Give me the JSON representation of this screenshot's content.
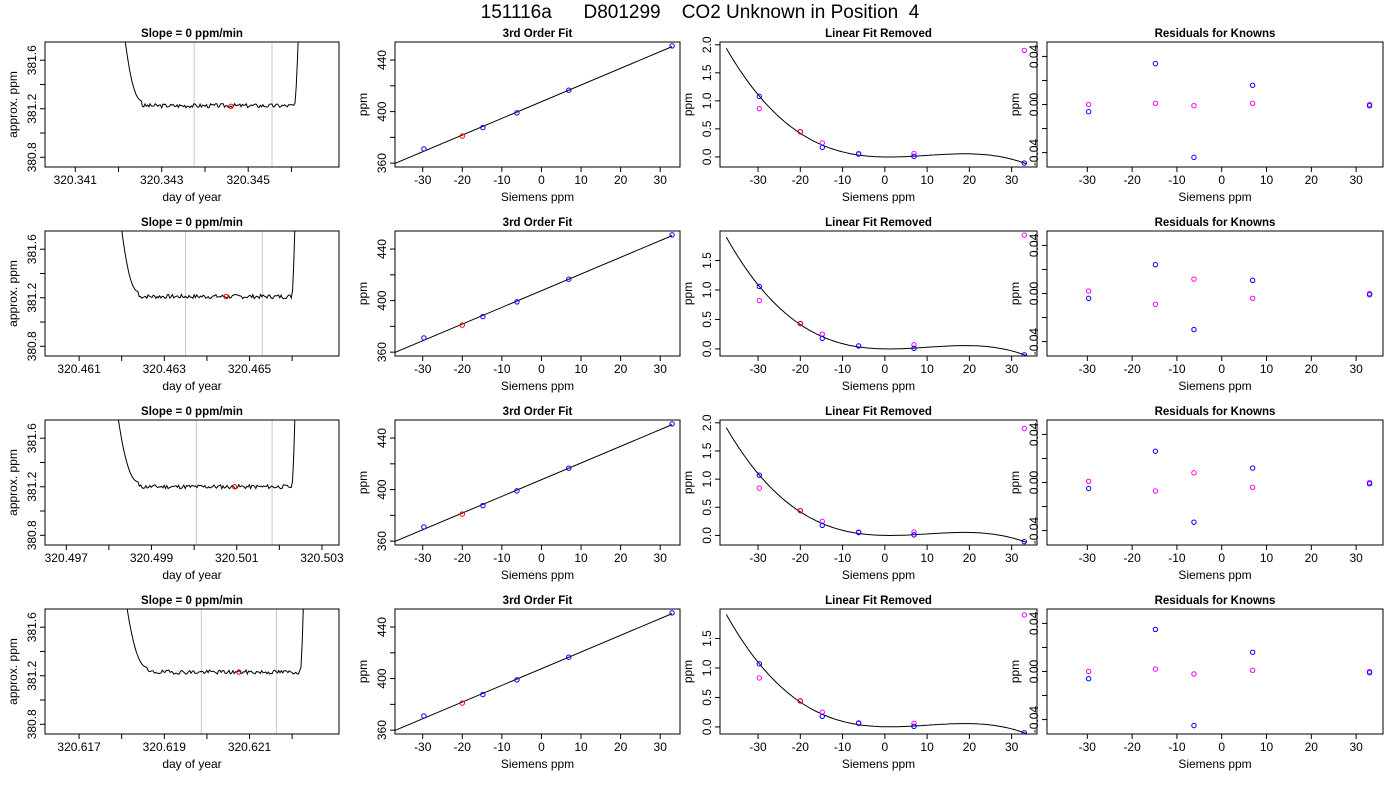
{
  "title": "151116a      D801299    CO2 Unknown in Position  4",
  "colors": {
    "known": "#0000ff",
    "unknown": "#ff00ff",
    "highlight": "#ff0000",
    "curve": "#000000",
    "window": "#c8c8c8"
  },
  "fit_points": {
    "x": [
      -29.7,
      -20.0,
      -14.8,
      -6.2,
      6.9,
      33.0
    ],
    "y": [
      371.0,
      381.0,
      387.6,
      399.0,
      416.6,
      451.0
    ],
    "highlight_index": 1
  },
  "fit_range": {
    "x": [
      -37,
      35
    ],
    "y": [
      357,
      454
    ]
  },
  "linear_removed_curve": {
    "coefficients": [
      0.0,
      -0.0054,
      0.00029,
      8e-06
    ]
  },
  "chart_data": [
    {
      "type": "line",
      "panel_title": "Slope =  0  ppm/min",
      "xlabel": "day of year",
      "ylabel": "approx. ppm",
      "xlim": [
        320.3403,
        320.3471
      ],
      "ylim": [
        380.72,
        381.75
      ],
      "xticks": [
        320.341,
        320.342,
        320.343,
        320.344,
        320.345,
        320.346
      ],
      "xtick_labels": [
        "320.341",
        "",
        "320.343",
        "",
        "320.345",
        ""
      ],
      "yticks": [
        380.8,
        381.0,
        381.2,
        381.4,
        381.6
      ],
      "ytick_labels": [
        "380.8",
        "",
        "381.2",
        "",
        "381.6"
      ],
      "trace": {
        "start": 320.34205,
        "flat_start": 320.34255,
        "flat_end": 320.34608,
        "end": 320.3462,
        "level": 381.225,
        "seed": 3
      },
      "window_lines": [
        320.34375,
        320.34555
      ],
      "marker": {
        "x": 320.3446,
        "y": 381.22
      }
    },
    {
      "type": "scatter",
      "panel_title": "3rd Order Fit",
      "xlabel": "Siemens ppm",
      "ylabel": "ppm",
      "xticks": [
        -30,
        -20,
        -10,
        0,
        10,
        20,
        30
      ],
      "yticks": [
        360,
        380,
        400,
        420,
        440
      ],
      "ytick_labels": [
        "360",
        "",
        "400",
        "",
        "440"
      ]
    },
    {
      "type": "scatter",
      "panel_title": "Linear Fit Removed",
      "xlabel": "Siemens ppm",
      "ylabel": "ppm",
      "xlim": [
        -39,
        36
      ],
      "ylim": [
        -0.18,
        2.05
      ],
      "xticks": [
        -30,
        -20,
        -10,
        0,
        10,
        20,
        30
      ],
      "yticks": [
        0,
        0.5,
        1,
        1.5,
        2
      ],
      "ytick_labels": [
        "0.0",
        "0.5",
        "1.0",
        "1.5",
        "2.0"
      ],
      "known": [
        [
          -29.7,
          1.08
        ],
        [
          -20.0,
          0.45
        ],
        [
          -14.8,
          0.17
        ],
        [
          -6.2,
          0.05
        ],
        [
          6.9,
          0.01
        ],
        [
          33.0,
          -0.11
        ]
      ],
      "unknown": [
        [
          -29.7,
          0.86
        ],
        [
          -14.8,
          0.25
        ],
        [
          -6.2,
          0.06
        ],
        [
          6.9,
          0.06
        ],
        [
          33.0,
          1.9
        ]
      ],
      "highlight": [
        [
          -20.0,
          0.45
        ]
      ]
    },
    {
      "type": "scatter",
      "panel_title": "Residuals for Knowns",
      "xlabel": "Siemens ppm",
      "ylabel": "ppm",
      "xlim": [
        -39,
        36
      ],
      "ylim": [
        -0.052,
        0.052
      ],
      "xticks": [
        -30,
        -20,
        -10,
        0,
        10,
        20,
        30
      ],
      "yticks": [
        -0.04,
        -0.02,
        0,
        0.02,
        0.04
      ],
      "ytick_labels": [
        "-0.04",
        "",
        "0.00",
        "",
        "0.04"
      ],
      "known": [
        [
          -29.7,
          -0.006
        ],
        [
          -14.8,
          0.034
        ],
        [
          -6.2,
          -0.044
        ],
        [
          6.9,
          0.016
        ],
        [
          33.0,
          -0.001
        ]
      ],
      "unknown": [
        [
          -29.7,
          0.0
        ],
        [
          -14.8,
          0.001
        ],
        [
          -6.2,
          -0.001
        ],
        [
          6.9,
          0.001
        ],
        [
          33.0,
          0.0
        ]
      ]
    },
    {
      "type": "line",
      "panel_title": "Slope =  0  ppm/min",
      "xlabel": "day of year",
      "ylabel": "approx. ppm",
      "xlim": [
        320.4602,
        320.4671
      ],
      "ylim": [
        380.72,
        381.75
      ],
      "xticks": [
        320.461,
        320.462,
        320.463,
        320.464,
        320.465,
        320.466
      ],
      "xtick_labels": [
        "320.461",
        "",
        "320.463",
        "",
        "320.465",
        ""
      ],
      "yticks": [
        380.8,
        381.0,
        381.2,
        381.4,
        381.6
      ],
      "ytick_labels": [
        "380.8",
        "",
        "381.2",
        "",
        "381.6"
      ],
      "trace": {
        "start": 320.4619,
        "flat_start": 320.4624,
        "flat_end": 320.466,
        "end": 320.4661,
        "level": 381.21,
        "seed": 7
      },
      "window_lines": [
        320.4635,
        320.4653
      ],
      "marker": {
        "x": 320.46445,
        "y": 381.21
      }
    },
    {
      "type": "scatter",
      "panel_title": "3rd Order Fit",
      "xlabel": "Siemens ppm",
      "ylabel": "ppm",
      "xticks": [
        -30,
        -20,
        -10,
        0,
        10,
        20,
        30
      ],
      "yticks": [
        360,
        380,
        400,
        420,
        440
      ],
      "ytick_labels": [
        "360",
        "",
        "400",
        "",
        "440"
      ]
    },
    {
      "type": "scatter",
      "panel_title": "Linear Fit Removed",
      "xlabel": "Siemens ppm",
      "ylabel": "ppm",
      "xlim": [
        -39,
        36
      ],
      "ylim": [
        -0.12,
        2.0
      ],
      "xticks": [
        -30,
        -20,
        -10,
        0,
        10,
        20,
        30
      ],
      "yticks": [
        0,
        0.5,
        1,
        1.5
      ],
      "ytick_labels": [
        "0.0",
        "0.5",
        "1.0",
        "1.5"
      ],
      "known": [
        [
          -29.7,
          1.06
        ],
        [
          -20.0,
          0.43
        ],
        [
          -14.8,
          0.18
        ],
        [
          -6.2,
          0.05
        ],
        [
          6.9,
          0.01
        ],
        [
          33.0,
          -0.1
        ]
      ],
      "unknown": [
        [
          -29.7,
          0.82
        ],
        [
          -14.8,
          0.25
        ],
        [
          -6.2,
          0.05
        ],
        [
          6.9,
          0.07
        ],
        [
          33.0,
          1.93
        ]
      ],
      "highlight": [
        [
          -20.0,
          0.43
        ]
      ]
    },
    {
      "type": "scatter",
      "panel_title": "Residuals for Knowns",
      "xlabel": "Siemens ppm",
      "ylabel": "ppm",
      "xlim": [
        -39,
        36
      ],
      "ylim": [
        -0.052,
        0.052
      ],
      "xticks": [
        -30,
        -20,
        -10,
        0,
        10,
        20,
        30
      ],
      "yticks": [
        -0.04,
        -0.02,
        0,
        0.02,
        0.04
      ],
      "ytick_labels": [
        "-0.04",
        "",
        "0.00",
        "",
        "0.04"
      ],
      "known": [
        [
          -29.7,
          -0.004
        ],
        [
          -14.8,
          0.024
        ],
        [
          -6.2,
          -0.03
        ],
        [
          6.9,
          0.011
        ],
        [
          33.0,
          -0.001
        ]
      ],
      "unknown": [
        [
          -29.7,
          0.002
        ],
        [
          -14.8,
          -0.009
        ],
        [
          -6.2,
          0.012
        ],
        [
          6.9,
          -0.004
        ],
        [
          33.0,
          0.0
        ]
      ]
    },
    {
      "type": "line",
      "panel_title": "Slope =  0  ppm/min",
      "xlabel": "day of year",
      "ylabel": "approx. ppm",
      "xlim": [
        320.4965,
        320.5034
      ],
      "ylim": [
        380.72,
        381.75
      ],
      "xticks": [
        320.497,
        320.498,
        320.499,
        320.5,
        320.501,
        320.502,
        320.503
      ],
      "xtick_labels": [
        "320.497",
        "",
        "320.499",
        "",
        "320.501",
        "",
        "320.503"
      ],
      "yticks": [
        380.8,
        381.0,
        381.2,
        381.4,
        381.6
      ],
      "ytick_labels": [
        "380.8",
        "",
        "381.2",
        "",
        "381.6"
      ],
      "trace": {
        "start": 320.4981,
        "flat_start": 320.4987,
        "flat_end": 320.5023,
        "end": 320.5024,
        "level": 381.2,
        "seed": 11
      },
      "window_lines": [
        320.50005,
        320.50183
      ],
      "marker": {
        "x": 320.50095,
        "y": 381.2
      }
    },
    {
      "type": "scatter",
      "panel_title": "3rd Order Fit",
      "xlabel": "Siemens ppm",
      "ylabel": "ppm",
      "xticks": [
        -30,
        -20,
        -10,
        0,
        10,
        20,
        30
      ],
      "yticks": [
        360,
        380,
        400,
        420,
        440
      ],
      "ytick_labels": [
        "360",
        "",
        "400",
        "",
        "440"
      ]
    },
    {
      "type": "scatter",
      "panel_title": "Linear Fit Removed",
      "xlabel": "Siemens ppm",
      "ylabel": "ppm",
      "xlim": [
        -39,
        36
      ],
      "ylim": [
        -0.17,
        2.05
      ],
      "xticks": [
        -30,
        -20,
        -10,
        0,
        10,
        20,
        30
      ],
      "yticks": [
        0,
        0.5,
        1,
        1.5,
        2
      ],
      "ytick_labels": [
        "0.0",
        "0.5",
        "1.0",
        "1.5",
        "2.0"
      ],
      "known": [
        [
          -29.7,
          1.07
        ],
        [
          -20.0,
          0.44
        ],
        [
          -14.8,
          0.18
        ],
        [
          -6.2,
          0.05
        ],
        [
          6.9,
          0.01
        ],
        [
          33.0,
          -0.11
        ]
      ],
      "unknown": [
        [
          -29.7,
          0.84
        ],
        [
          -14.8,
          0.25
        ],
        [
          -6.2,
          0.06
        ],
        [
          6.9,
          0.06
        ],
        [
          33.0,
          1.9
        ]
      ],
      "highlight": [
        [
          -20.0,
          0.44
        ]
      ]
    },
    {
      "type": "scatter",
      "panel_title": "Residuals for Knowns",
      "xlabel": "Siemens ppm",
      "ylabel": "ppm",
      "xlim": [
        -39,
        36
      ],
      "ylim": [
        -0.052,
        0.052
      ],
      "xticks": [
        -30,
        -20,
        -10,
        0,
        10,
        20,
        30
      ],
      "yticks": [
        -0.04,
        -0.02,
        0,
        0.02,
        0.04
      ],
      "ytick_labels": [
        "-0.04",
        "",
        "0.00",
        "",
        "0.04"
      ],
      "known": [
        [
          -29.7,
          -0.005
        ],
        [
          -14.8,
          0.026
        ],
        [
          -6.2,
          -0.033
        ],
        [
          6.9,
          0.012
        ],
        [
          33.0,
          -0.001
        ]
      ],
      "unknown": [
        [
          -29.7,
          0.001
        ],
        [
          -14.8,
          -0.007
        ],
        [
          -6.2,
          0.008
        ],
        [
          6.9,
          -0.004
        ],
        [
          33.0,
          0.0
        ]
      ]
    },
    {
      "type": "line",
      "panel_title": "Slope =  0  ppm/min",
      "xlabel": "day of year",
      "ylabel": "approx. ppm",
      "xlim": [
        320.6162,
        320.6231
      ],
      "ylim": [
        380.72,
        381.75
      ],
      "xticks": [
        320.617,
        320.618,
        320.619,
        320.62,
        320.621,
        320.622
      ],
      "xtick_labels": [
        "320.617",
        "",
        "320.619",
        "",
        "320.621",
        ""
      ],
      "yticks": [
        380.8,
        381.0,
        381.2,
        381.4,
        381.6
      ],
      "ytick_labels": [
        "380.8",
        "",
        "381.2",
        "",
        "381.6"
      ],
      "trace": {
        "start": 320.618,
        "flat_start": 320.6186,
        "flat_end": 320.6222,
        "end": 320.6223,
        "level": 381.23,
        "seed": 19
      },
      "window_lines": [
        320.61987,
        320.62163
      ],
      "marker": {
        "x": 320.62075,
        "y": 381.23
      }
    },
    {
      "type": "scatter",
      "panel_title": "3rd Order Fit",
      "xlabel": "Siemens ppm",
      "ylabel": "ppm",
      "xticks": [
        -30,
        -20,
        -10,
        0,
        10,
        20,
        30
      ],
      "yticks": [
        360,
        380,
        400,
        420,
        440
      ],
      "ytick_labels": [
        "360",
        "",
        "400",
        "",
        "440"
      ]
    },
    {
      "type": "scatter",
      "panel_title": "Linear Fit Removed",
      "xlabel": "Siemens ppm",
      "ylabel": "ppm",
      "xlim": [
        -39,
        36
      ],
      "ylim": [
        -0.12,
        2.0
      ],
      "xticks": [
        -30,
        -20,
        -10,
        0,
        10,
        20,
        30
      ],
      "yticks": [
        0,
        0.5,
        1,
        1.5
      ],
      "ytick_labels": [
        "0.0",
        "0.5",
        "1.0",
        "1.5"
      ],
      "known": [
        [
          -29.7,
          1.07
        ],
        [
          -20.0,
          0.44
        ],
        [
          -14.8,
          0.18
        ],
        [
          -6.2,
          0.06
        ],
        [
          6.9,
          0.01
        ],
        [
          33.0,
          -0.1
        ]
      ],
      "unknown": [
        [
          -29.7,
          0.83
        ],
        [
          -14.8,
          0.25
        ],
        [
          -6.2,
          0.07
        ],
        [
          6.9,
          0.06
        ],
        [
          33.0,
          1.9
        ]
      ],
      "highlight": [
        [
          -20.0,
          0.44
        ]
      ]
    },
    {
      "type": "scatter",
      "panel_title": "Residuals for Knowns",
      "xlabel": "Siemens ppm",
      "ylabel": "ppm",
      "xlim": [
        -39,
        36
      ],
      "ylim": [
        -0.052,
        0.052
      ],
      "xticks": [
        -30,
        -20,
        -10,
        0,
        10,
        20,
        30
      ],
      "yticks": [
        -0.04,
        -0.02,
        0,
        0.02,
        0.04
      ],
      "ytick_labels": [
        "-0.04",
        "",
        "0.00",
        "",
        "0.04"
      ],
      "known": [
        [
          -29.7,
          -0.006
        ],
        [
          -14.8,
          0.035
        ],
        [
          -6.2,
          -0.045
        ],
        [
          6.9,
          0.016
        ],
        [
          33.0,
          -0.001
        ]
      ],
      "unknown": [
        [
          -29.7,
          0.0
        ],
        [
          -14.8,
          0.002
        ],
        [
          -6.2,
          -0.002
        ],
        [
          6.9,
          0.001
        ],
        [
          33.0,
          0.0
        ]
      ]
    }
  ]
}
